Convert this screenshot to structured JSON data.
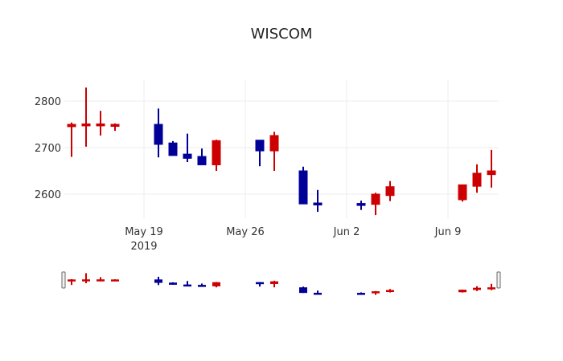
{
  "chart_data": {
    "type": "candlestick",
    "title": "WISCOM",
    "xlabel": "",
    "ylabel": "",
    "ylim": [
      2540,
      2845
    ],
    "y_ticks": [
      2600,
      2700,
      2800
    ],
    "x_ticks": [
      {
        "label": "May 19",
        "sublabel": "2019",
        "date": "2019-05-19"
      },
      {
        "label": "May 26",
        "sublabel": "",
        "date": "2019-05-26"
      },
      {
        "label": "Jun 2",
        "sublabel": "",
        "date": "2019-06-02"
      },
      {
        "label": "Jun 9",
        "sublabel": "",
        "date": "2019-06-09"
      }
    ],
    "grid": true,
    "legend": false,
    "rangeslider": true,
    "colors": {
      "increasing": "#cc0000",
      "decreasing": "#000099"
    },
    "candles": [
      {
        "date": "2019-05-14",
        "open": 2745,
        "high": 2754,
        "low": 2680,
        "close": 2750,
        "dir": "inc"
      },
      {
        "date": "2019-05-15",
        "open": 2748,
        "high": 2829,
        "low": 2702,
        "close": 2751,
        "dir": "inc"
      },
      {
        "date": "2019-05-16",
        "open": 2748,
        "high": 2779,
        "low": 2726,
        "close": 2751,
        "dir": "inc"
      },
      {
        "date": "2019-05-17",
        "open": 2746,
        "high": 2752,
        "low": 2736,
        "close": 2750,
        "dir": "inc"
      },
      {
        "date": "2019-05-20",
        "open": 2750,
        "high": 2784,
        "low": 2679,
        "close": 2707,
        "dir": "dec"
      },
      {
        "date": "2019-05-21",
        "open": 2710,
        "high": 2714,
        "low": 2683,
        "close": 2683,
        "dir": "dec"
      },
      {
        "date": "2019-05-22",
        "open": 2686,
        "high": 2730,
        "low": 2669,
        "close": 2677,
        "dir": "dec"
      },
      {
        "date": "2019-05-23",
        "open": 2681,
        "high": 2698,
        "low": 2663,
        "close": 2663,
        "dir": "dec"
      },
      {
        "date": "2019-05-24",
        "open": 2663,
        "high": 2717,
        "low": 2650,
        "close": 2715,
        "dir": "inc"
      },
      {
        "date": "2019-05-27",
        "open": 2716,
        "high": 2716,
        "low": 2660,
        "close": 2693,
        "dir": "dec"
      },
      {
        "date": "2019-05-28",
        "open": 2693,
        "high": 2734,
        "low": 2650,
        "close": 2726,
        "dir": "inc"
      },
      {
        "date": "2019-05-30",
        "open": 2650,
        "high": 2659,
        "low": 2579,
        "close": 2579,
        "dir": "dec"
      },
      {
        "date": "2019-05-31",
        "open": 2581,
        "high": 2609,
        "low": 2562,
        "close": 2579,
        "dir": "dec"
      },
      {
        "date": "2019-06-03",
        "open": 2580,
        "high": 2586,
        "low": 2566,
        "close": 2577,
        "dir": "dec"
      },
      {
        "date": "2019-06-04",
        "open": 2578,
        "high": 2603,
        "low": 2555,
        "close": 2600,
        "dir": "inc"
      },
      {
        "date": "2019-06-05",
        "open": 2597,
        "high": 2628,
        "low": 2585,
        "close": 2616,
        "dir": "inc"
      },
      {
        "date": "2019-06-10",
        "open": 2588,
        "high": 2620,
        "low": 2584,
        "close": 2620,
        "dir": "inc"
      },
      {
        "date": "2019-06-11",
        "open": 2617,
        "high": 2664,
        "low": 2603,
        "close": 2645,
        "dir": "inc"
      },
      {
        "date": "2019-06-12",
        "open": 2642,
        "high": 2695,
        "low": 2614,
        "close": 2650,
        "dir": "inc"
      }
    ]
  }
}
